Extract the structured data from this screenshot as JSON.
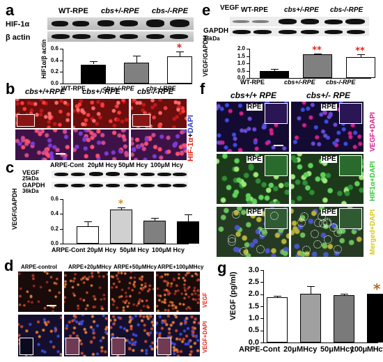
{
  "panels": [
    "a",
    "b",
    "c",
    "d",
    "e",
    "f",
    "g"
  ],
  "panel_a": {
    "proteins": [
      "HIF-1α",
      "β actin"
    ],
    "groups": [
      "WT-RPE",
      "cbs+/-RPE",
      "cbs-/-RPE"
    ],
    "ylabel": "HIF1α/β actin",
    "star": "*"
  },
  "panel_b": {
    "columns": [
      "cbs+/+RPE",
      "cbs+/-RPE",
      "cbs-/-RPE"
    ],
    "side_label_main": "HIF-1α",
    "side_label_sep": "+",
    "side_label_dapi": "DAPI"
  },
  "panel_c": {
    "groups": [
      "ARPE-Cont",
      "20μM Hcy",
      "50μM Hcy",
      "100μM Hcy"
    ],
    "proteins": [
      "VEGF",
      "GAPDH"
    ],
    "mw": [
      "25kDa",
      "36kDa"
    ],
    "ylabel": "VEGF/GAPDH",
    "star": "*"
  },
  "panel_d": {
    "columns": [
      "ARPE-control",
      "ARPE+20μMHcy",
      "ARPE+50μMHcy",
      "ARPE+100μMHcy"
    ],
    "row_label_1": "VEGF",
    "row_label_2": "VEGF+DAPI"
  },
  "panel_e": {
    "proteins": [
      "VEGF",
      "GAPDH"
    ],
    "mw": "36kDa",
    "groups": [
      "WT-RPE",
      "cbs+/-RPE",
      "cbs-/-RPE"
    ],
    "ylabel": "VEGF/GAPDH",
    "stars": "**"
  },
  "panel_f": {
    "columns": [
      "cbs+/+ RPE",
      "cbs+/- RPE"
    ],
    "row_labels": [
      "VEGF+DAPI",
      "HIF1α+DAPI",
      "Merged+DAPI"
    ],
    "inset_label": "RPE"
  },
  "panel_g": {
    "star": "*"
  },
  "chart_data": [
    {
      "panel": "a",
      "type": "bar",
      "categories": [
        "WT-RPE",
        "cbs+/-RPE",
        "cbs-/-RPE"
      ],
      "values": [
        0.33,
        0.36,
        0.47
      ],
      "errors": [
        0.05,
        0.12,
        0.08
      ],
      "colors": [
        "#000000",
        "#808080",
        "#ffffff"
      ],
      "ylim": [
        0,
        0.6
      ],
      "yticks": [
        0.0,
        0.2,
        0.4,
        0.6
      ]
    },
    {
      "panel": "c",
      "type": "bar",
      "categories": [
        "ARPE-Cont",
        "20μM Hcy",
        "50μM Hcy",
        "100μM Hcy"
      ],
      "values": [
        0.23,
        0.46,
        0.31,
        0.3
      ],
      "errors": [
        0.07,
        0.03,
        0.04,
        0.09
      ],
      "colors": [
        "#ffffff",
        "#d0d0d0",
        "#808080",
        "#000000"
      ],
      "ylim": [
        0,
        0.6
      ],
      "yticks": [
        0.0,
        0.2,
        0.4,
        0.6
      ]
    },
    {
      "panel": "e",
      "type": "bar",
      "categories": [
        "WT-RPE",
        "cbs+/-RPE",
        "cbs-/-RPE"
      ],
      "values": [
        0.48,
        1.62,
        1.45
      ],
      "errors": [
        0.12,
        0.05,
        0.15
      ],
      "colors": [
        "#000000",
        "#808080",
        "#ffffff"
      ],
      "ylim": [
        0,
        2.0
      ],
      "yticks": [
        0.0,
        0.5,
        1.0,
        1.5,
        2.0
      ]
    },
    {
      "panel": "g",
      "type": "bar",
      "ylabel": "VEGF (pg/ml)",
      "categories": [
        "ARPE-Cont",
        "20μMHcy",
        "50μMHcy",
        "100μMHcy"
      ],
      "values": [
        1.87,
        2.03,
        1.95,
        2.03
      ],
      "errors": [
        0.07,
        0.3,
        0.07,
        0.0
      ],
      "colors": [
        "#ffffff",
        "#a0a0a0",
        "#7a7a7a",
        "#000000"
      ],
      "ylim": [
        0,
        3.0
      ],
      "yticks": [
        0.0,
        0.5,
        1.0,
        1.5,
        2.0,
        2.5,
        3.0
      ],
      "ytick_labels": [
        "0.0",
        "0.5",
        "1.0",
        "1.5",
        "2.0",
        "2.5",
        "3.0"
      ]
    }
  ]
}
